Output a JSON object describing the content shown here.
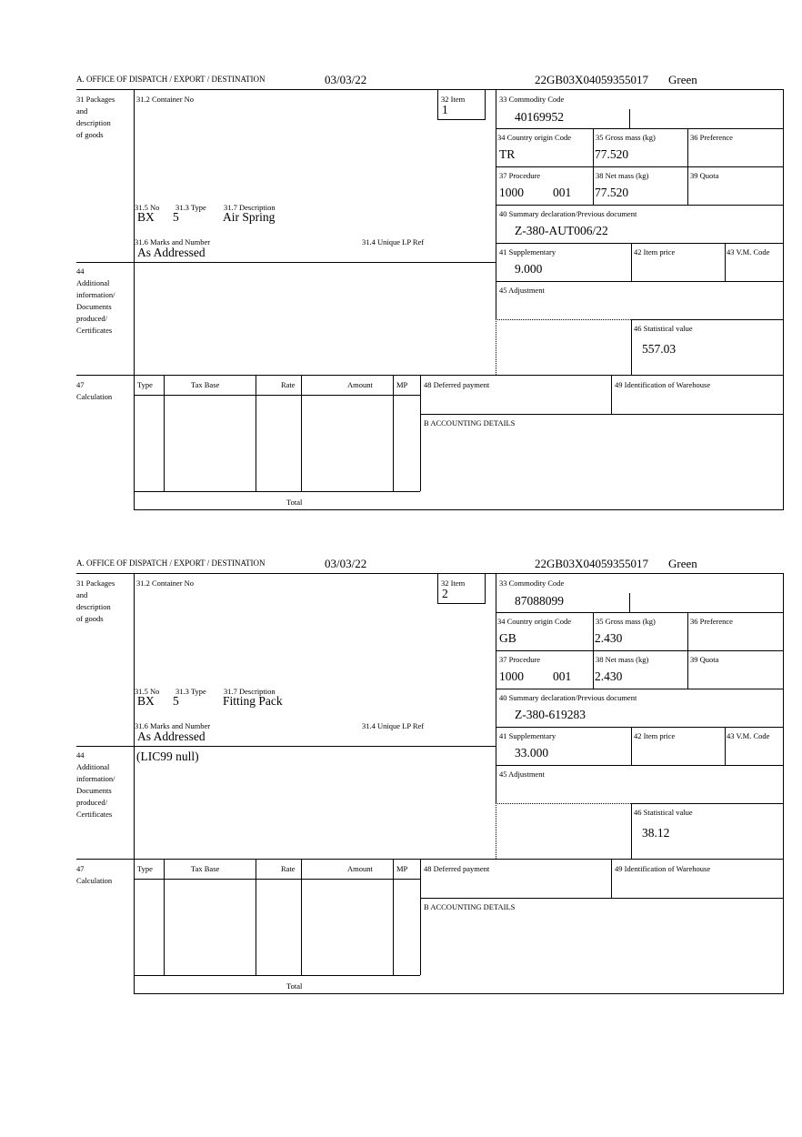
{
  "header": {
    "office": "A.  OFFICE OF DISPATCH / EXPORT / DESTINATION"
  },
  "labels": {
    "packages": "31 Packages\nand\ndescription\nof goods",
    "container": "31.2 Container No",
    "item": "32 Item",
    "no": "31.5 No",
    "type": "31.3 Type",
    "description": "31.7 Description",
    "marks": "31.6 Marks and Number",
    "unique_ref": "31.4 Unique LP Ref",
    "commodity": "33 Commodity Code",
    "country": "34 Country origin Code",
    "gross": "35 Gross mass (kg)",
    "preference": "36 Preference",
    "procedure": "37 Procedure",
    "net": "38 Net mass (kg)",
    "quota": "39 Quota",
    "summary": "40 Summary declaration/Previous document",
    "supplementary": "41 Supplementary",
    "item_price": "42 Item price",
    "vm_code": "43 V.M. Code",
    "additional": "44\nAdditional\ninformation/\nDocuments\nproduced/\nCertificates",
    "adjustment": "45 Adjustment",
    "statistical": "46 Statistical value",
    "calculation": "47\nCalculation",
    "calc_type": "Type",
    "tax_base": "Tax Base",
    "rate": "Rate",
    "amount": "Amount",
    "mp": "MP",
    "deferred": "48 Deferred payment",
    "warehouse": "49 Identification of Warehouse",
    "accounting": "B ACCOUNTING DETAILS",
    "total": "Total"
  },
  "items": [
    {
      "date": "03/03/22",
      "reference": "22GB03X04059355017",
      "route": "Green",
      "item": "1",
      "no": "BX",
      "type": "5",
      "description": "Air Spring",
      "marks": "As Addressed",
      "commodity": "40169952",
      "country": "TR",
      "gross": "77.520",
      "procedure": "1000",
      "procedure_add": "001",
      "net": "77.520",
      "summary": "Z-380-AUT006/22",
      "supplementary": "9.000",
      "additional": "",
      "statistical": "557.03"
    },
    {
      "date": "03/03/22",
      "reference": "22GB03X04059355017",
      "route": "Green",
      "item": "2",
      "no": "BX",
      "type": "5",
      "description": "Fitting Pack",
      "marks": "As Addressed",
      "commodity": "87088099",
      "country": "GB",
      "gross": "2.430",
      "procedure": "1000",
      "procedure_add": "001",
      "net": "2.430",
      "summary": "Z-380-619283",
      "supplementary": "33.000",
      "additional": "(LIC99 null)",
      "statistical": "38.12"
    }
  ]
}
